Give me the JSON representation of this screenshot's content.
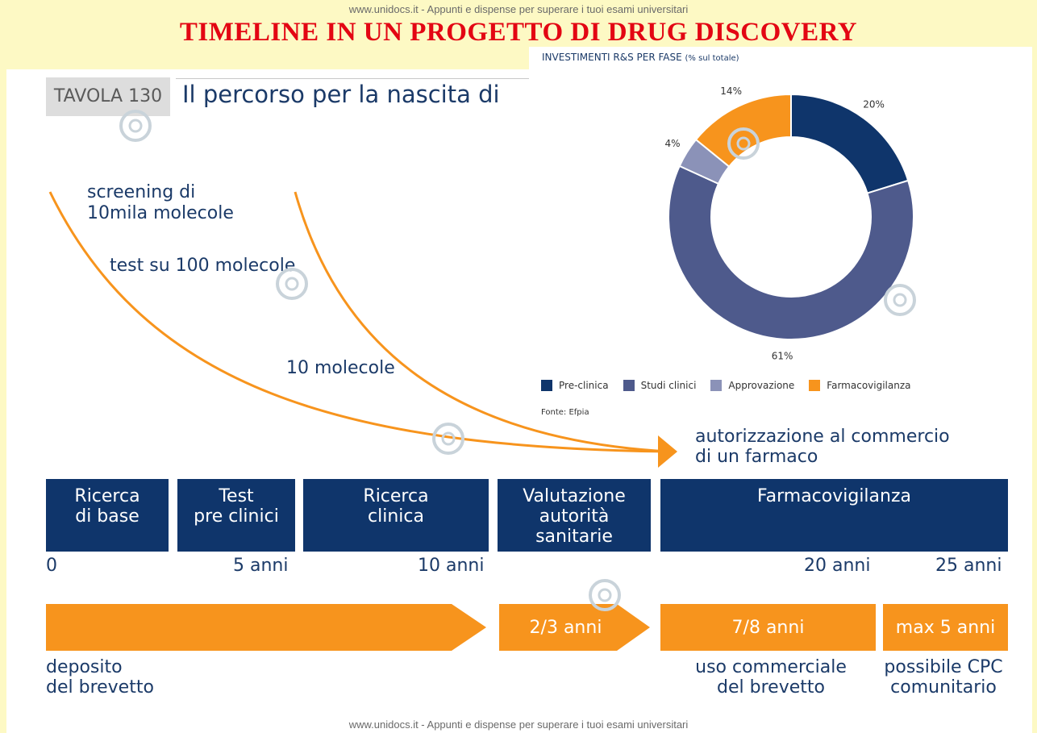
{
  "watermark_top": "www.unidocs.it - Appunti e dispense per superare i tuoi esami universitari",
  "watermark_bottom": "www.unidocs.it - Appunti e dispense per superare i tuoi esami universitari",
  "main_title": "TIMELINE IN UN PROGETTO DI DRUG DISCOVERY",
  "tavola_label": "TAVOLA 130",
  "subtitle": "Il percorso per la nascita di",
  "funnel": {
    "screening": "screening di\n10mila molecole",
    "test": "test su 100 molecole",
    "ten": "10 molecole"
  },
  "authorization": "autorizzazione al commercio\ndi un farmaco",
  "phases": [
    {
      "label": "Ricerca\ndi base"
    },
    {
      "label": "Test\npre clinici"
    },
    {
      "label": "Ricerca\nclinica"
    },
    {
      "label": "Valutazione\nautorità\nsanitarie"
    },
    {
      "label": "Farmacovigilanza"
    }
  ],
  "ticks": [
    "0",
    "5 anni",
    "10 anni",
    "20 anni",
    "25 anni"
  ],
  "terms": [
    "",
    "2/3 anni",
    "7/8 anni",
    "max 5 anni"
  ],
  "bottom_labels": {
    "deposit": "deposito\ndel brevetto",
    "commercial": "uso commerciale\ndel brevetto",
    "cpc": "possibile CPC\ncomunitario"
  },
  "chart_data": {
    "type": "pie",
    "title": "INVESTIMENTI R&S PER FASE",
    "title_note": "(% sul totale)",
    "categories": [
      "Pre-clinica",
      "Studi clinici",
      "Approvazione",
      "Farmacovigilanza"
    ],
    "values": [
      20,
      61,
      4,
      14
    ],
    "value_labels": [
      "20%",
      "61%",
      "4%",
      "14%"
    ],
    "colors": [
      "#0f356b",
      "#4e5a8c",
      "#8b92b8",
      "#f7941d"
    ],
    "donut": true,
    "legend_position": "bottom",
    "source": "Fonte: Efpia"
  },
  "colors": {
    "navy": "#0f356b",
    "orange": "#f7941d",
    "title_red": "#e30613",
    "text_blue": "#1b3a68",
    "background": "#fdf9c4"
  }
}
